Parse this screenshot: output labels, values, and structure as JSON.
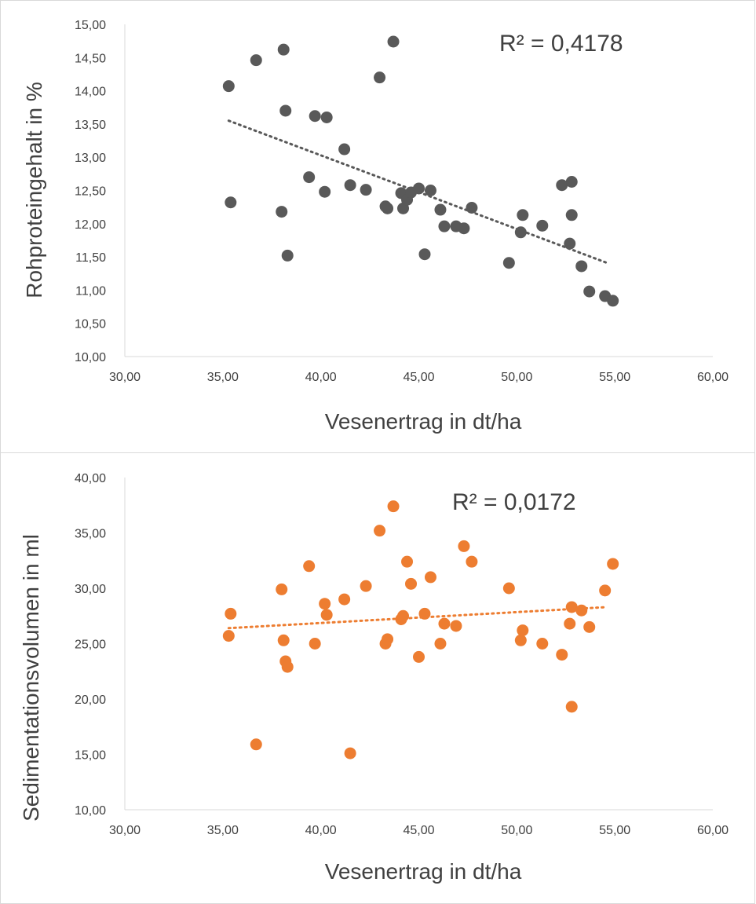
{
  "chart_data": [
    {
      "type": "scatter",
      "xlabel": "Vesenertrag in dt/ha",
      "ylabel": "Rohproteingehalt in %",
      "xlim": [
        30,
        60
      ],
      "ylim": [
        10,
        15
      ],
      "x_ticks": [
        "30,00",
        "35,00",
        "40,00",
        "45,00",
        "50,00",
        "55,00",
        "60,00"
      ],
      "y_ticks": [
        "10,00",
        "10,50",
        "11,00",
        "11,50",
        "12,00",
        "12,50",
        "13,00",
        "13,50",
        "14,00",
        "14,50",
        "15,00"
      ],
      "annotation": "R² = 0,4178",
      "marker_color": "#595959",
      "trendline": {
        "style": "dotted",
        "color": "#595959",
        "x": [
          35.3,
          54.6
        ],
        "y": [
          13.55,
          11.41
        ]
      },
      "grid": false,
      "legend": "none",
      "points": [
        [
          35.3,
          14.07
        ],
        [
          35.4,
          12.32
        ],
        [
          36.7,
          14.46
        ],
        [
          38.0,
          12.18
        ],
        [
          38.1,
          14.62
        ],
        [
          38.2,
          13.7
        ],
        [
          38.3,
          11.52
        ],
        [
          39.4,
          12.7
        ],
        [
          39.7,
          13.62
        ],
        [
          40.2,
          12.48
        ],
        [
          40.3,
          13.6
        ],
        [
          41.2,
          13.12
        ],
        [
          41.5,
          12.58
        ],
        [
          42.3,
          12.51
        ],
        [
          43.0,
          14.2
        ],
        [
          43.3,
          12.26
        ],
        [
          43.4,
          12.23
        ],
        [
          43.7,
          14.74
        ],
        [
          44.1,
          12.46
        ],
        [
          44.2,
          12.23
        ],
        [
          44.4,
          12.36
        ],
        [
          44.6,
          12.47
        ],
        [
          45.0,
          12.53
        ],
        [
          45.3,
          11.54
        ],
        [
          45.6,
          12.5
        ],
        [
          46.1,
          12.21
        ],
        [
          46.3,
          11.96
        ],
        [
          46.9,
          11.96
        ],
        [
          47.3,
          11.93
        ],
        [
          47.7,
          12.24
        ],
        [
          49.6,
          11.41
        ],
        [
          50.2,
          11.87
        ],
        [
          50.3,
          12.13
        ],
        [
          51.3,
          11.97
        ],
        [
          52.3,
          12.58
        ],
        [
          52.7,
          11.7
        ],
        [
          52.8,
          12.13
        ],
        [
          52.8,
          12.63
        ],
        [
          53.3,
          11.36
        ],
        [
          53.7,
          10.98
        ],
        [
          54.5,
          10.91
        ],
        [
          54.9,
          10.84
        ]
      ]
    },
    {
      "type": "scatter",
      "xlabel": "Vesenertrag in dt/ha",
      "ylabel": "Sedimentationsvolumen in ml",
      "xlim": [
        30,
        60
      ],
      "ylim": [
        10,
        40
      ],
      "x_ticks": [
        "30,00",
        "35,00",
        "40,00",
        "45,00",
        "50,00",
        "55,00",
        "60,00"
      ],
      "y_ticks": [
        "10,00",
        "15,00",
        "20,00",
        "25,00",
        "30,00",
        "35,00",
        "40,00"
      ],
      "annotation": "R² = 0,0172",
      "marker_color": "#ed7d31",
      "trendline": {
        "style": "dotted",
        "color": "#ed7d31",
        "x": [
          35.3,
          54.6
        ],
        "y": [
          26.4,
          28.3
        ]
      },
      "grid": false,
      "legend": "none",
      "points": [
        [
          35.3,
          25.7
        ],
        [
          35.4,
          27.7
        ],
        [
          36.7,
          15.9
        ],
        [
          38.0,
          29.9
        ],
        [
          38.1,
          25.3
        ],
        [
          38.2,
          23.4
        ],
        [
          38.3,
          22.9
        ],
        [
          39.4,
          32.0
        ],
        [
          39.7,
          25.0
        ],
        [
          40.2,
          28.6
        ],
        [
          40.3,
          27.6
        ],
        [
          41.2,
          29.0
        ],
        [
          41.5,
          15.1
        ],
        [
          42.3,
          30.2
        ],
        [
          43.0,
          35.2
        ],
        [
          43.3,
          25.0
        ],
        [
          43.4,
          25.4
        ],
        [
          43.7,
          37.4
        ],
        [
          44.1,
          27.2
        ],
        [
          44.2,
          27.5
        ],
        [
          44.4,
          32.4
        ],
        [
          44.6,
          30.4
        ],
        [
          45.0,
          23.8
        ],
        [
          45.3,
          27.7
        ],
        [
          45.6,
          31.0
        ],
        [
          46.1,
          25.0
        ],
        [
          46.3,
          26.8
        ],
        [
          46.9,
          26.6
        ],
        [
          47.3,
          33.8
        ],
        [
          47.7,
          32.4
        ],
        [
          49.6,
          30.0
        ],
        [
          50.2,
          25.3
        ],
        [
          50.3,
          26.2
        ],
        [
          51.3,
          25.0
        ],
        [
          52.3,
          24.0
        ],
        [
          52.7,
          26.8
        ],
        [
          52.8,
          28.3
        ],
        [
          52.8,
          19.3
        ],
        [
          53.3,
          28.0
        ],
        [
          53.7,
          26.5
        ],
        [
          54.5,
          29.8
        ],
        [
          54.9,
          32.2
        ]
      ]
    }
  ]
}
